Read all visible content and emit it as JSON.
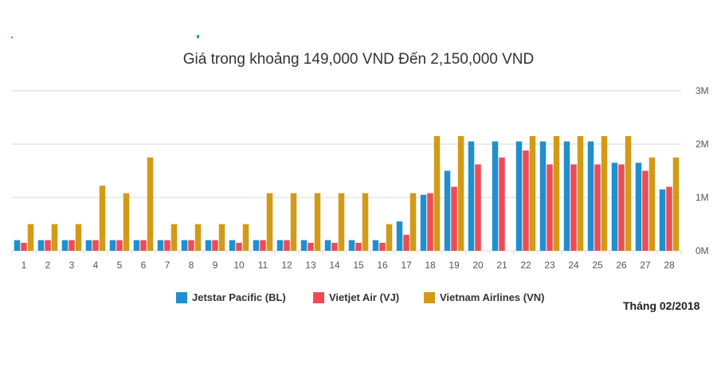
{
  "colors": {
    "jetstar": "#1f8fcf",
    "vietjet": "#ef4b55",
    "vietnam_airlines": "#d29a16",
    "grid": "#d9d9d9",
    "axis_text": "#555555"
  },
  "chart_data": {
    "type": "bar",
    "title": "Giá trong khoảng 149,000 VND Đến 2,150,000 VND",
    "categories": [
      "1",
      "2",
      "3",
      "4",
      "5",
      "6",
      "7",
      "8",
      "9",
      "10",
      "11",
      "12",
      "13",
      "14",
      "15",
      "16",
      "17",
      "18",
      "19",
      "20",
      "21",
      "22",
      "23",
      "24",
      "25",
      "26",
      "27",
      "28"
    ],
    "series": [
      {
        "name": "Jetstar Pacific (BL)",
        "color_key": "jetstar",
        "values": [
          0.2,
          0.2,
          0.2,
          0.2,
          0.2,
          0.2,
          0.2,
          0.2,
          0.2,
          0.2,
          0.2,
          0.2,
          0.2,
          0.2,
          0.2,
          0.2,
          0.55,
          1.05,
          1.5,
          2.05,
          2.05,
          2.05,
          2.05,
          2.05,
          2.05,
          1.65,
          1.65,
          1.15
        ]
      },
      {
        "name": "Vietjet Air (VJ)",
        "color_key": "vietjet",
        "values": [
          0.15,
          0.2,
          0.2,
          0.2,
          0.2,
          0.2,
          0.2,
          0.2,
          0.2,
          0.15,
          0.2,
          0.2,
          0.15,
          0.15,
          0.15,
          0.15,
          0.3,
          1.08,
          1.2,
          1.62,
          1.75,
          1.88,
          1.62,
          1.62,
          1.62,
          1.62,
          1.5,
          1.2
        ]
      },
      {
        "name": "Vietnam Airlines (VN)",
        "color_key": "vietnam_airlines",
        "values": [
          0.5,
          0.5,
          0.5,
          1.22,
          1.08,
          1.75,
          0.5,
          0.5,
          0.5,
          0.5,
          1.08,
          1.08,
          1.08,
          1.08,
          1.08,
          0.5,
          1.08,
          2.15,
          2.15,
          null,
          null,
          2.15,
          2.15,
          2.15,
          2.15,
          2.15,
          1.75,
          1.75
        ]
      }
    ],
    "y_ticks": [
      "0M",
      "1M",
      "2M",
      "3M"
    ],
    "ylim": [
      0,
      3
    ],
    "grid": true,
    "y_axis_side": "right",
    "legend_position": "bottom"
  },
  "footer": {
    "month_label": "Tháng 02/2018"
  }
}
